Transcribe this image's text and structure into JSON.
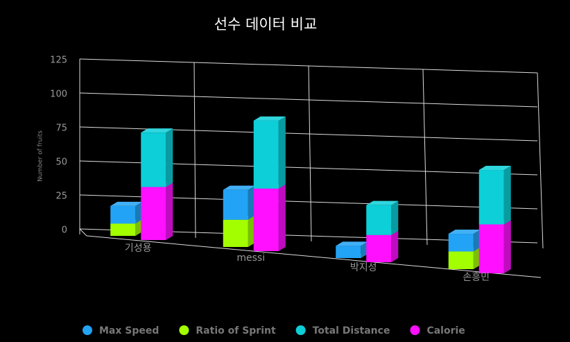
{
  "chart_data": {
    "type": "bar3d",
    "title": "선수 데이터 비교",
    "y_label": "Number of fruits",
    "categories": [
      "기성용",
      "messi",
      "박지성",
      "손흥민"
    ],
    "series": [
      {
        "name": "Max Speed",
        "color": "#22a3f5",
        "values": [
          13,
          22,
          9,
          13
        ]
      },
      {
        "name": "Ratio of Sprint",
        "color": "#a3ff00",
        "values": [
          9,
          20,
          0,
          13
        ]
      },
      {
        "name": "Total Distance",
        "color": "#0ccfd8",
        "values": [
          40,
          50,
          22,
          40
        ]
      },
      {
        "name": "Calorie",
        "color": "#ff10ff",
        "values": [
          39,
          46,
          20,
          36
        ]
      }
    ],
    "ylim": [
      0,
      125
    ],
    "yticks": [
      0,
      25,
      50,
      75,
      100,
      125
    ],
    "grid": true,
    "legend": "bottom"
  }
}
